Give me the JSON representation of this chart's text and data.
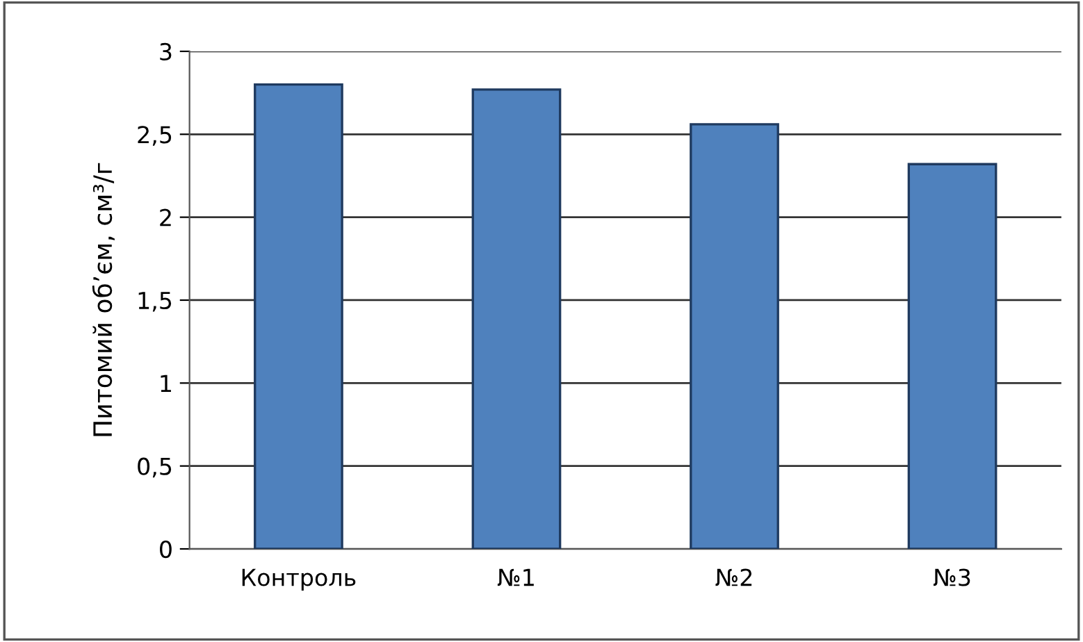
{
  "chart_data": {
    "type": "bar",
    "ylabel": "Питомий об’єм, см³/г",
    "categories": [
      "Контроль",
      "№1",
      "№2",
      "№3"
    ],
    "values": [
      2.8,
      2.77,
      2.56,
      2.32
    ],
    "color": "#4f81bd",
    "ylim": [
      0,
      3
    ],
    "yticks": [
      {
        "value": 0,
        "label": "0"
      },
      {
        "value": 0.5,
        "label": "0,5"
      },
      {
        "value": 1,
        "label": "1"
      },
      {
        "value": 1.5,
        "label": "1,5"
      },
      {
        "value": 2,
        "label": "2"
      },
      {
        "value": 2.5,
        "label": "2,5"
      },
      {
        "value": 3,
        "label": "3"
      }
    ],
    "grid": "y"
  }
}
